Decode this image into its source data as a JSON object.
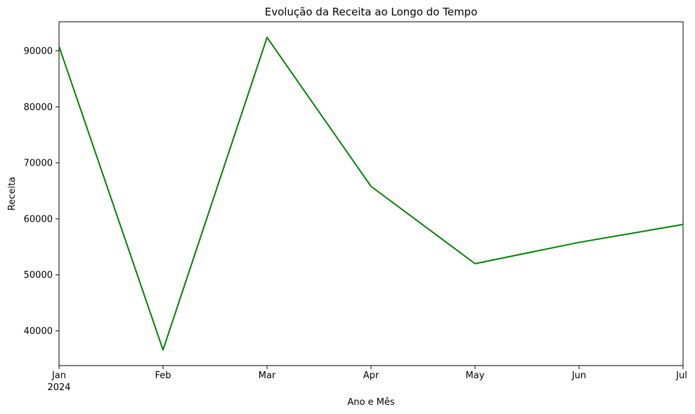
{
  "chart_data": {
    "type": "line",
    "title": "Evolução da Receita ao Longo do Tempo",
    "xlabel": "Ano e Mês",
    "ylabel": "Receita",
    "x": [
      "2024-01",
      "2024-02",
      "2024-03",
      "2024-04",
      "2024-05",
      "2024-06",
      "2024-07"
    ],
    "x_tick_labels": [
      "Jan",
      "Feb",
      "Mar",
      "Apr",
      "May",
      "Jun",
      "Jul"
    ],
    "x_year_label": "2024",
    "series": [
      {
        "values": [
          90800,
          36600,
          92400,
          65800,
          52000,
          55800,
          59000
        ],
        "color": "#008000"
      }
    ],
    "ylim": [
      33800,
      95200
    ],
    "y_ticks": [
      40000,
      50000,
      60000,
      70000,
      80000,
      90000
    ],
    "grid": false
  }
}
